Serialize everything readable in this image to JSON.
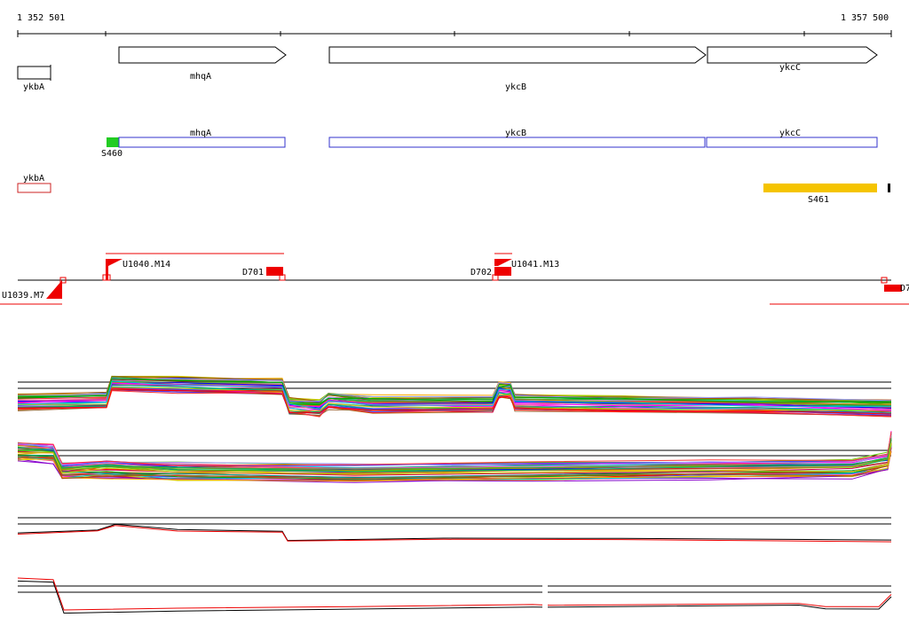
{
  "ruler": {
    "start_label": "1 352 501",
    "end_label": "1 357 500"
  },
  "genes_strand": [
    {
      "name": "mhqA"
    },
    {
      "name": "ykcB"
    },
    {
      "name": "ykcC"
    },
    {
      "name": "ykbA"
    }
  ],
  "genes_boxes": [
    {
      "name": "mhqA"
    },
    {
      "name": "ykcB"
    },
    {
      "name": "ykcC"
    },
    {
      "name": "ykbA"
    }
  ],
  "segments": [
    {
      "name": "S460",
      "color": "#22cc22"
    },
    {
      "name": "S461",
      "color": "#f5c400"
    }
  ],
  "features": [
    {
      "name": "U1040.M14"
    },
    {
      "name": "D701"
    },
    {
      "name": "D702"
    },
    {
      "name": "U1041.M13"
    },
    {
      "name": "U1039.M7"
    },
    {
      "name": "D7"
    }
  ],
  "colors": {
    "gene_box": "#3333cc",
    "feature": "#ee0000",
    "antisense_gene": "#cc2222"
  },
  "expression_panels": [
    {
      "id": "sense-all",
      "kind": "multi-condition"
    },
    {
      "id": "antisense-all",
      "kind": "multi-condition"
    },
    {
      "id": "sense-selected",
      "kind": "two-condition",
      "colors": [
        "#000000",
        "#ee0000"
      ]
    },
    {
      "id": "antisense-selected",
      "kind": "two-condition",
      "colors": [
        "#000000",
        "#ee0000"
      ]
    }
  ]
}
